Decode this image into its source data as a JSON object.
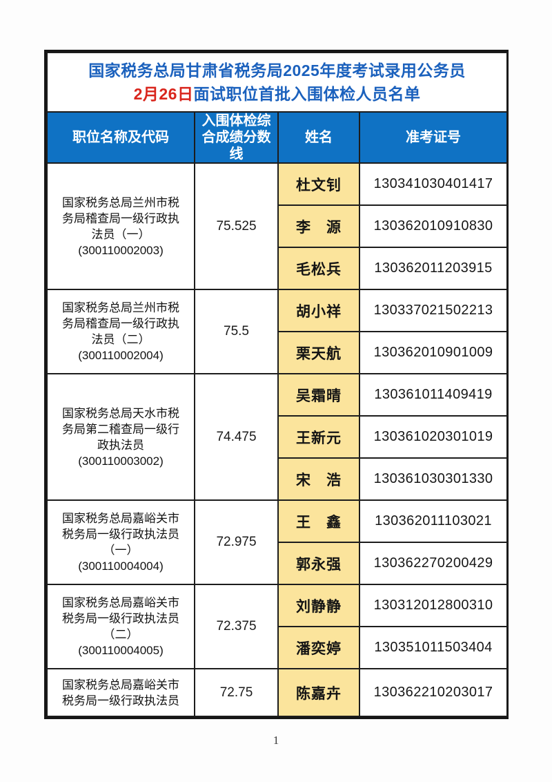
{
  "title": {
    "line1": "国家税务总局甘肃省税务局2025年度考试录用公务员",
    "line2_red": "2月26日",
    "line2_rest": "面试职位首批入围体检人员名单"
  },
  "table": {
    "headers": {
      "position": "职位名称及代码",
      "score": "入围体检综合成绩分数线",
      "name": "姓名",
      "ticket": "准考证号"
    },
    "groups": [
      {
        "position": "国家税务总局兰州市税务局稽查局一级行政执法员（一）",
        "code": "(300110002003)",
        "score": "75.525",
        "candidates": [
          {
            "name": "杜文钊",
            "id": "130341030401417"
          },
          {
            "name": "李　源",
            "id": "130362010910830"
          },
          {
            "name": "毛松兵",
            "id": "130362011203915"
          }
        ]
      },
      {
        "position": "国家税务总局兰州市税务局稽查局一级行政执法员（二）",
        "code": "(300110002004)",
        "score": "75.5",
        "candidates": [
          {
            "name": "胡小祥",
            "id": "130337021502213"
          },
          {
            "name": "栗天航",
            "id": "130362010901009"
          }
        ]
      },
      {
        "position": "国家税务总局天水市税务局第二稽查局一级行政执法员",
        "code": "(300110003002)",
        "score": "74.475",
        "candidates": [
          {
            "name": "吴霜晴",
            "id": "130361011409419"
          },
          {
            "name": "王新元",
            "id": "130361020301019"
          },
          {
            "name": "宋　浩",
            "id": "130361030301330"
          }
        ]
      },
      {
        "position": "国家税务总局嘉峪关市税务局一级行政执法员（一）",
        "code": "(300110004004)",
        "score": "72.975",
        "candidates": [
          {
            "name": "王　鑫",
            "id": "130362011103021"
          },
          {
            "name": "郭永强",
            "id": "130362270200429"
          }
        ]
      },
      {
        "position": "国家税务总局嘉峪关市税务局一级行政执法员（二）",
        "code": "(300110004005)",
        "score": "72.375",
        "candidates": [
          {
            "name": "刘静静",
            "id": "130312012800310"
          },
          {
            "name": "潘奕婷",
            "id": "130351011503404"
          }
        ]
      },
      {
        "position": "国家税务总局嘉峪关市税务局一级行政执法员",
        "code": "",
        "score": "72.75",
        "candidates": [
          {
            "name": "陈嘉卉",
            "id": "130362210203017"
          }
        ]
      }
    ]
  },
  "page": {
    "number": "1"
  },
  "colors": {
    "header_blue": "#0f72c4",
    "title_blue": "#1b61bd",
    "highlight_red": "#d9251c",
    "name_yellow": "#fbe49c",
    "border": "#1c1c1c"
  }
}
